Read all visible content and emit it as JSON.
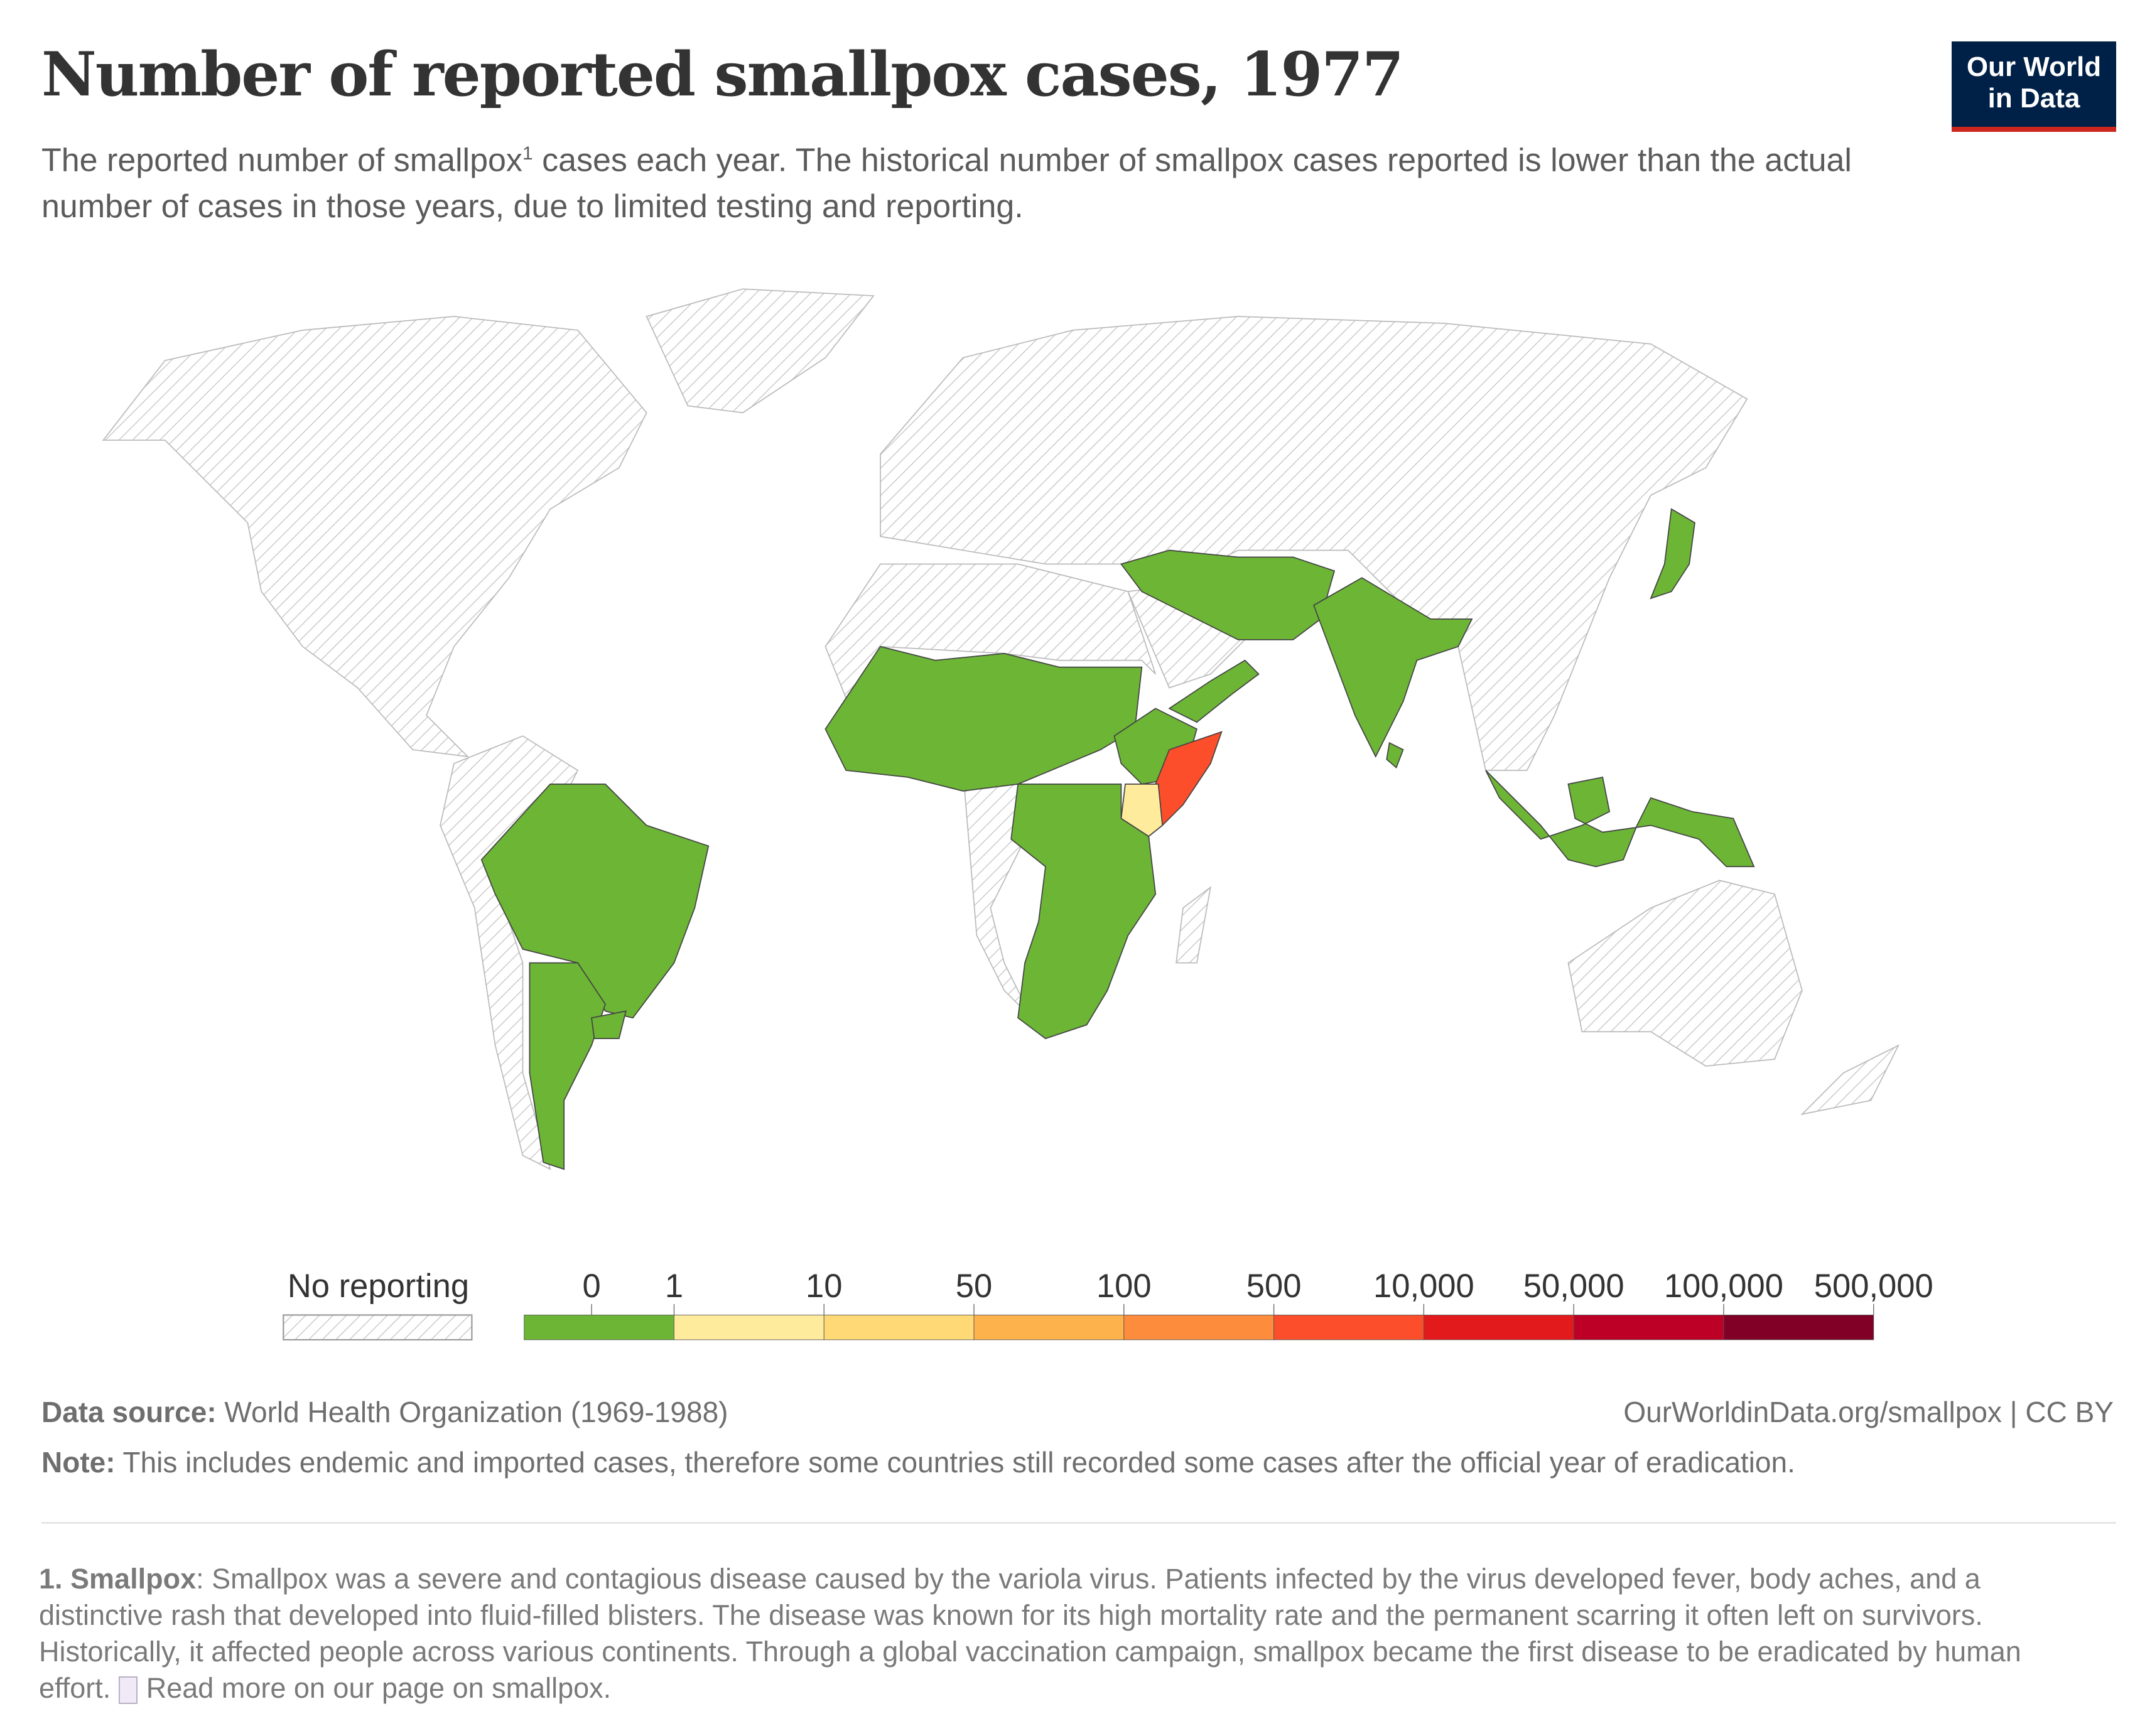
{
  "header": {
    "title": "Number of reported smallpox cases, 1977",
    "subtitle_pre": "The reported number of smallpox",
    "subtitle_sup": "1",
    "subtitle_post": " cases each year. The historical number of smallpox cases reported is lower than the actual number of cases in those years, due to limited testing and reporting.",
    "logo_line1": "Our World",
    "logo_line2": "in Data"
  },
  "chart_data": {
    "type": "choropleth-map",
    "title": "Number of reported smallpox cases, 1977",
    "year": 1977,
    "no_data_label": "No reporting",
    "bins": [
      {
        "label_from": "0",
        "label_to": "1",
        "color": "#6cb535"
      },
      {
        "label_from": "1",
        "label_to": "10",
        "color": "#ffeb9c"
      },
      {
        "label_from": "10",
        "label_to": "50",
        "color": "#fed976"
      },
      {
        "label_from": "50",
        "label_to": "100",
        "color": "#feb24c"
      },
      {
        "label_from": "100",
        "label_to": "500",
        "color": "#fd8d3c"
      },
      {
        "label_from": "500",
        "label_to": "10,000",
        "color": "#fc4e2a"
      },
      {
        "label_from": "10,000",
        "label_to": "50,000",
        "color": "#e31a1c"
      },
      {
        "label_from": "50,000",
        "label_to": "100,000",
        "color": "#bd0026"
      },
      {
        "label_from": "100,000",
        "label_to": "500,000",
        "color": "#800026"
      }
    ],
    "tick_labels": [
      "0",
      "1",
      "10",
      "50",
      "100",
      "500",
      "10,000",
      "50,000",
      "100,000",
      "500,000"
    ],
    "countries": [
      {
        "region": "Somalia",
        "bin": "500-10,000"
      },
      {
        "region": "Kenya",
        "bin": "1-10"
      },
      {
        "region": "Ethiopia",
        "bin": "0"
      },
      {
        "region": "Sudan",
        "bin": "0"
      },
      {
        "region": "Chad",
        "bin": "0"
      },
      {
        "region": "Niger",
        "bin": "0"
      },
      {
        "region": "Mali",
        "bin": "0"
      },
      {
        "region": "Nigeria",
        "bin": "0"
      },
      {
        "region": "West Africa",
        "bin": "0"
      },
      {
        "region": "DR Congo",
        "bin": "0"
      },
      {
        "region": "Tanzania",
        "bin": "0"
      },
      {
        "region": "Zambia",
        "bin": "0"
      },
      {
        "region": "Mozambique",
        "bin": "0"
      },
      {
        "region": "Botswana",
        "bin": "0"
      },
      {
        "region": "South Africa",
        "bin": "0"
      },
      {
        "region": "Yemen & Oman",
        "bin": "0"
      },
      {
        "region": "Iran",
        "bin": "0"
      },
      {
        "region": "Afghanistan",
        "bin": "0"
      },
      {
        "region": "Pakistan",
        "bin": "0"
      },
      {
        "region": "India",
        "bin": "0"
      },
      {
        "region": "Bangladesh",
        "bin": "0"
      },
      {
        "region": "Sri Lanka",
        "bin": "0"
      },
      {
        "region": "Indonesia",
        "bin": "0"
      },
      {
        "region": "Japan",
        "bin": "0"
      },
      {
        "region": "Brazil",
        "bin": "0"
      },
      {
        "region": "Argentina",
        "bin": "0"
      },
      {
        "region": "Uruguay",
        "bin": "0"
      }
    ],
    "no_data_color": "#ffffff",
    "hatch_color": "#c8c8c8",
    "border_color": "#555555"
  },
  "footer": {
    "source_label": "Data source:",
    "source_text": " World Health Organization (1969-1988)",
    "url_text": "OurWorldinData.org/smallpox | CC BY",
    "note_label": "Note:",
    "note_text": " This includes endemic and imported cases, therefore some countries still recorded some cases after the official year of eradication.",
    "footnote_label": "1. Smallpox",
    "footnote_text": ": Smallpox was a severe and contagious disease caused by the variola virus. Patients infected by the virus developed fever, body aches, and a distinctive rash that developed into fluid-filled blisters. The disease was known for its high mortality rate and the permanent scarring it often left on survivors. Historically, it affected people across various continents. Through a global vaccination campaign, smallpox became the first disease to be eradicated by human effort. ",
    "read_more": "Read more on our page on smallpox."
  }
}
